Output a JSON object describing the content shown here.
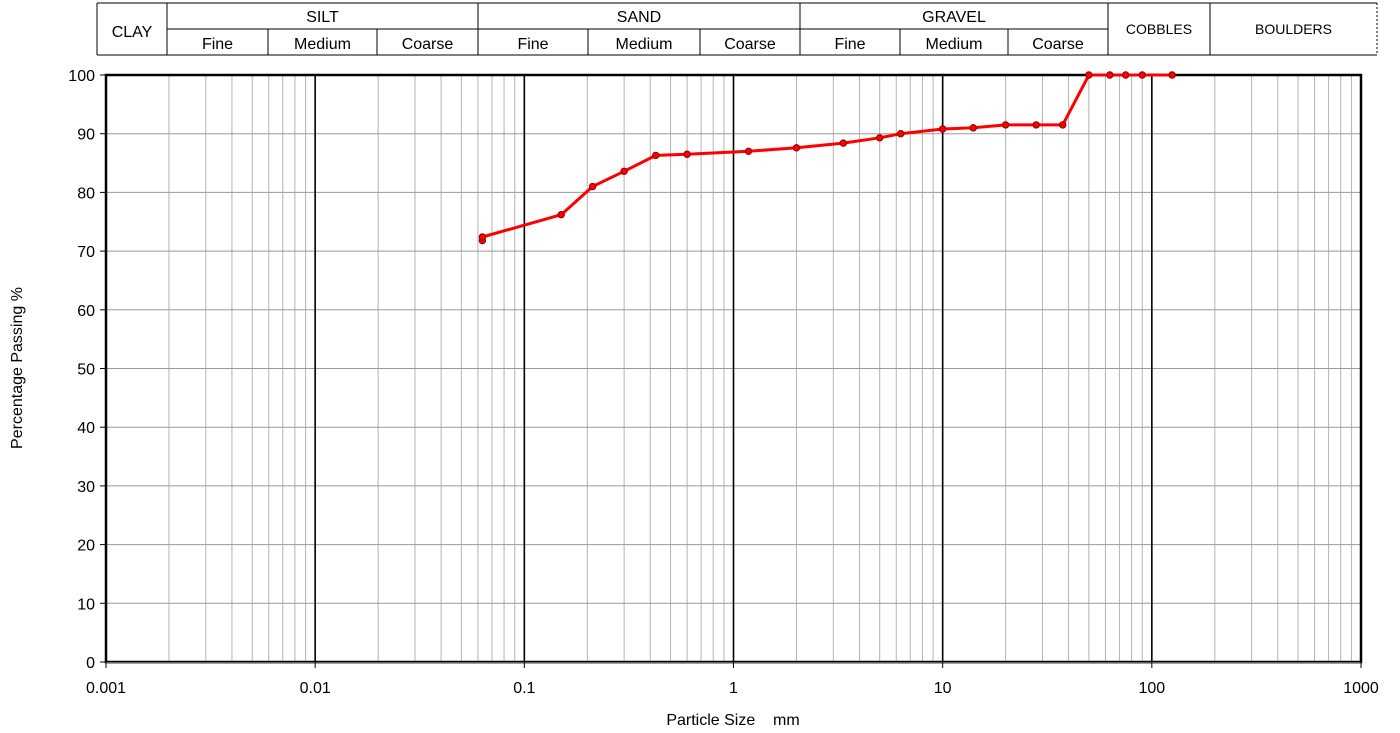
{
  "chart_data": {
    "type": "line",
    "title": "",
    "xlabel": "Particle Size    mm",
    "ylabel": "Percentage Passing  %",
    "x_scale": "log",
    "xlim": [
      0.001,
      1000
    ],
    "ylim": [
      0,
      100
    ],
    "grid": true,
    "x_tick_labels": [
      "0.001",
      "0.01",
      "0.1",
      "1",
      "10",
      "100",
      "1000"
    ],
    "y_tick_labels": [
      "0",
      "10",
      "20",
      "30",
      "40",
      "50",
      "60",
      "70",
      "80",
      "90",
      "100"
    ],
    "series": [
      {
        "color": "#ff0000",
        "x": [
          0.063,
          0.063,
          0.15,
          0.212,
          0.3,
          0.425,
          0.6,
          1.18,
          2.0,
          3.35,
          5.0,
          6.3,
          10,
          14,
          20,
          28,
          37.5,
          50,
          63,
          75,
          90,
          125
        ],
        "y": [
          71.8,
          72.4,
          76.2,
          81.0,
          83.6,
          86.3,
          86.5,
          87.0,
          87.6,
          88.4,
          89.3,
          90.0,
          90.8,
          91.0,
          91.5,
          91.5,
          91.5,
          100,
          100,
          100,
          100,
          100
        ]
      }
    ]
  },
  "classification": {
    "main": [
      {
        "id": "clay",
        "label": "CLAY"
      },
      {
        "id": "silt",
        "label": "SILT"
      },
      {
        "id": "sand",
        "label": "SAND"
      },
      {
        "id": "gravel",
        "label": "GRAVEL"
      },
      {
        "id": "cobbles",
        "label": "COBBLES"
      },
      {
        "id": "boulders",
        "label": "BOULDERS"
      }
    ],
    "subdivisions": {
      "silt": [
        "Fine",
        "Medium",
        "Coarse"
      ],
      "sand": [
        "Fine",
        "Medium",
        "Coarse"
      ],
      "gravel": [
        "Fine",
        "Medium",
        "Coarse"
      ]
    }
  }
}
